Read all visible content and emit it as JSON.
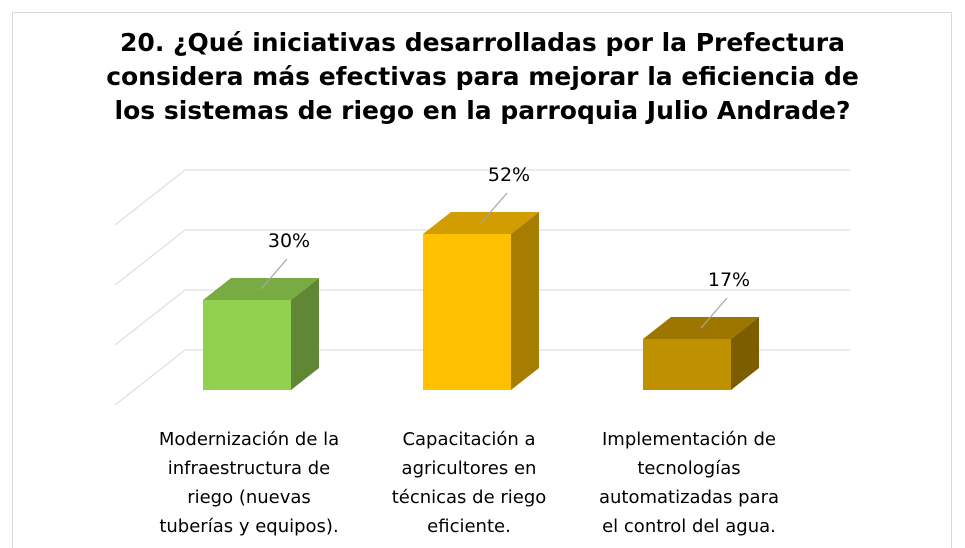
{
  "chart_data": {
    "type": "bar3d",
    "title": "20. ¿Qué iniciativas desarrolladas por la Prefectura considera más efectivas para mejorar la eficiencia de los sistemas de riego en la parroquia Julio Andrade?",
    "categories": [
      "Modernización de la infraestructura de riego (nuevas tuberías y equipos).",
      "Capacitación a agricultores en técnicas de riego eficiente.",
      "Implementación de tecnologías automatizadas para el control del agua."
    ],
    "values": [
      30,
      52,
      17
    ],
    "value_labels": [
      "30%",
      "52%",
      "17%"
    ],
    "colors": [
      "#92d050",
      "#ffc000",
      "#bf9000"
    ],
    "ylim": [
      0,
      60
    ],
    "yticks": [
      0,
      20,
      40,
      60
    ],
    "grid": true
  }
}
